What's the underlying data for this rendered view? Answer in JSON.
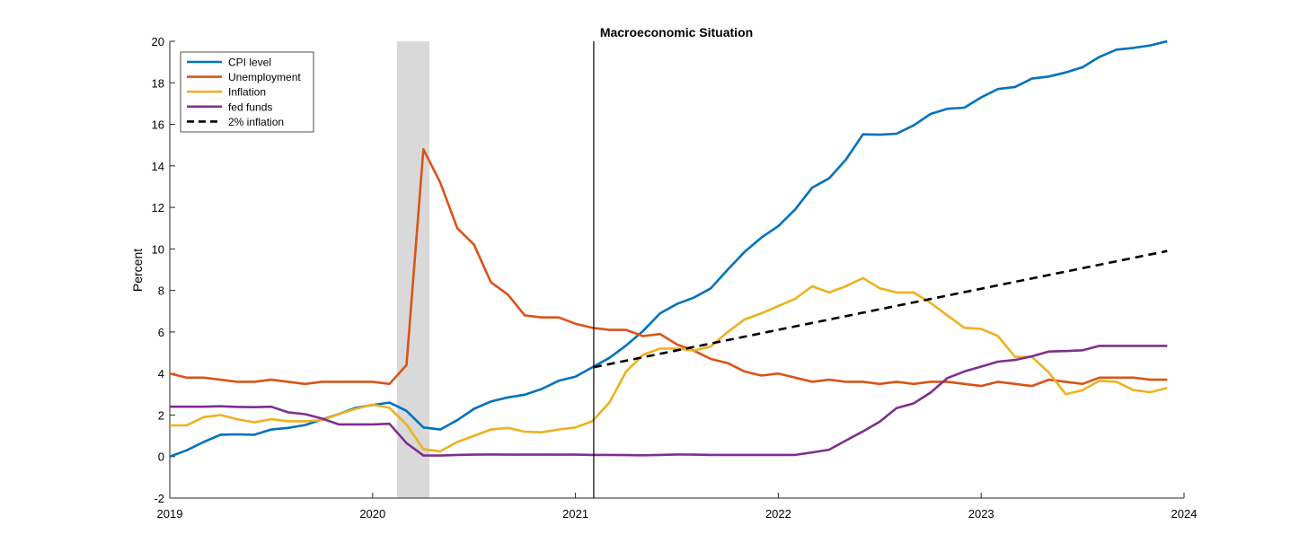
{
  "chart_data": {
    "type": "line",
    "title": "Macroeconomic Situation",
    "xlabel": "",
    "ylabel": "Percent",
    "xlim": [
      2019,
      2024
    ],
    "ylim": [
      -2,
      20
    ],
    "xticks": [
      2019,
      2020,
      2021,
      2022,
      2023,
      2024
    ],
    "xtick_labels": [
      "2019",
      "2020",
      "2021",
      "2022",
      "2023",
      "2024"
    ],
    "yticks": [
      -2,
      0,
      2,
      4,
      6,
      8,
      10,
      12,
      14,
      16,
      18,
      20
    ],
    "ytick_labels": [
      "-2",
      "0",
      "2",
      "4",
      "6",
      "8",
      "10",
      "12",
      "14",
      "16",
      "18",
      "20"
    ],
    "grid": false,
    "legend_position": "top-left",
    "recession_band": {
      "x_start": 2020.12,
      "x_end": 2020.28,
      "color": "#d9d9d9"
    },
    "vertical_marker": {
      "x": 2021.09,
      "color": "#000000"
    },
    "series": [
      {
        "name": "CPI level",
        "color": "#0072BD",
        "style": "solid",
        "x": [
          2019.0,
          2019.083,
          2019.167,
          2019.25,
          2019.333,
          2019.417,
          2019.5,
          2019.583,
          2019.667,
          2019.75,
          2019.833,
          2019.917,
          2020.0,
          2020.083,
          2020.167,
          2020.25,
          2020.333,
          2020.417,
          2020.5,
          2020.583,
          2020.667,
          2020.75,
          2020.833,
          2020.917,
          2021.0,
          2021.083,
          2021.167,
          2021.25,
          2021.333,
          2021.417,
          2021.5,
          2021.583,
          2021.667,
          2021.75,
          2021.833,
          2021.917,
          2022.0,
          2022.083,
          2022.167,
          2022.25,
          2022.333,
          2022.417,
          2022.5,
          2022.583,
          2022.667,
          2022.75,
          2022.833,
          2022.917,
          2023.0,
          2023.083,
          2023.167,
          2023.25,
          2023.333,
          2023.417,
          2023.5,
          2023.583,
          2023.667,
          2023.75,
          2023.833,
          2023.917
        ],
        "values": [
          0.0,
          0.3,
          0.7,
          1.05,
          1.07,
          1.05,
          1.3,
          1.38,
          1.52,
          1.78,
          2.05,
          2.35,
          2.48,
          2.6,
          2.2,
          1.4,
          1.3,
          1.75,
          2.3,
          2.65,
          2.85,
          2.98,
          3.25,
          3.65,
          3.85,
          4.3,
          4.75,
          5.35,
          6.05,
          6.9,
          7.35,
          7.65,
          8.1,
          9.0,
          9.85,
          10.55,
          11.1,
          11.9,
          12.95,
          13.4,
          14.3,
          15.52,
          15.5,
          15.55,
          15.95,
          16.5,
          16.75,
          16.8,
          17.3,
          17.7,
          17.8,
          18.2,
          18.3,
          18.5,
          18.75,
          19.25,
          19.6,
          19.68,
          19.8,
          20.0
        ]
      },
      {
        "name": "Unemployment",
        "color": "#D95319",
        "style": "solid",
        "x": [
          2019.0,
          2019.083,
          2019.167,
          2019.25,
          2019.333,
          2019.417,
          2019.5,
          2019.583,
          2019.667,
          2019.75,
          2019.833,
          2019.917,
          2020.0,
          2020.083,
          2020.167,
          2020.25,
          2020.333,
          2020.417,
          2020.5,
          2020.583,
          2020.667,
          2020.75,
          2020.833,
          2020.917,
          2021.0,
          2021.083,
          2021.167,
          2021.25,
          2021.333,
          2021.417,
          2021.5,
          2021.583,
          2021.667,
          2021.75,
          2021.833,
          2021.917,
          2022.0,
          2022.083,
          2022.167,
          2022.25,
          2022.333,
          2022.417,
          2022.5,
          2022.583,
          2022.667,
          2022.75,
          2022.833,
          2022.917,
          2023.0,
          2023.083,
          2023.167,
          2023.25,
          2023.333,
          2023.417,
          2023.5,
          2023.583,
          2023.667,
          2023.75,
          2023.833,
          2023.917
        ],
        "values": [
          4.0,
          3.8,
          3.8,
          3.7,
          3.6,
          3.6,
          3.7,
          3.6,
          3.5,
          3.6,
          3.6,
          3.6,
          3.6,
          3.5,
          4.4,
          14.8,
          13.2,
          11.0,
          10.2,
          8.4,
          7.8,
          6.8,
          6.7,
          6.7,
          6.4,
          6.2,
          6.1,
          6.1,
          5.8,
          5.9,
          5.4,
          5.1,
          4.7,
          4.5,
          4.1,
          3.9,
          4.0,
          3.8,
          3.6,
          3.7,
          3.6,
          3.6,
          3.5,
          3.6,
          3.5,
          3.6,
          3.6,
          3.5,
          3.4,
          3.6,
          3.5,
          3.4,
          3.7,
          3.6,
          3.5,
          3.8,
          3.8,
          3.8,
          3.7,
          3.7
        ]
      },
      {
        "name": "Inflation",
        "color": "#EDB120",
        "style": "solid",
        "x": [
          2019.0,
          2019.083,
          2019.167,
          2019.25,
          2019.333,
          2019.417,
          2019.5,
          2019.583,
          2019.667,
          2019.75,
          2019.833,
          2019.917,
          2020.0,
          2020.083,
          2020.167,
          2020.25,
          2020.333,
          2020.417,
          2020.5,
          2020.583,
          2020.667,
          2020.75,
          2020.833,
          2020.917,
          2021.0,
          2021.083,
          2021.167,
          2021.25,
          2021.333,
          2021.417,
          2021.5,
          2021.583,
          2021.667,
          2021.75,
          2021.833,
          2021.917,
          2022.0,
          2022.083,
          2022.167,
          2022.25,
          2022.333,
          2022.417,
          2022.5,
          2022.583,
          2022.667,
          2022.75,
          2022.833,
          2022.917,
          2023.0,
          2023.083,
          2023.167,
          2023.25,
          2023.333,
          2023.417,
          2023.5,
          2023.583,
          2023.667,
          2023.75,
          2023.833,
          2023.917
        ],
        "values": [
          1.5,
          1.5,
          1.9,
          2.0,
          1.8,
          1.65,
          1.8,
          1.7,
          1.7,
          1.75,
          2.05,
          2.3,
          2.5,
          2.35,
          1.55,
          0.35,
          0.25,
          0.7,
          1.0,
          1.3,
          1.38,
          1.2,
          1.17,
          1.3,
          1.4,
          1.7,
          2.6,
          4.1,
          4.9,
          5.2,
          5.2,
          5.1,
          5.3,
          6.0,
          6.6,
          6.9,
          7.25,
          7.6,
          8.2,
          7.9,
          8.2,
          8.6,
          8.1,
          7.9,
          7.9,
          7.4,
          6.8,
          6.2,
          6.15,
          5.8,
          4.8,
          4.8,
          4.05,
          3.0,
          3.2,
          3.65,
          3.6,
          3.2,
          3.1,
          3.3
        ]
      },
      {
        "name": "fed funds",
        "color": "#7E2F8E",
        "style": "solid",
        "x": [
          2019.0,
          2019.083,
          2019.167,
          2019.25,
          2019.333,
          2019.417,
          2019.5,
          2019.583,
          2019.667,
          2019.75,
          2019.833,
          2019.917,
          2020.0,
          2020.083,
          2020.167,
          2020.25,
          2020.333,
          2020.417,
          2020.5,
          2020.583,
          2020.667,
          2020.75,
          2020.833,
          2020.917,
          2021.0,
          2021.083,
          2021.167,
          2021.25,
          2021.333,
          2021.417,
          2021.5,
          2021.583,
          2021.667,
          2021.75,
          2021.833,
          2021.917,
          2022.0,
          2022.083,
          2022.167,
          2022.25,
          2022.333,
          2022.417,
          2022.5,
          2022.583,
          2022.667,
          2022.75,
          2022.833,
          2022.917,
          2023.0,
          2023.083,
          2023.167,
          2023.25,
          2023.333,
          2023.417,
          2023.5,
          2023.583,
          2023.667,
          2023.75,
          2023.833,
          2023.917
        ],
        "values": [
          2.4,
          2.4,
          2.4,
          2.42,
          2.39,
          2.38,
          2.4,
          2.13,
          2.04,
          1.83,
          1.55,
          1.55,
          1.55,
          1.58,
          0.65,
          0.05,
          0.05,
          0.08,
          0.09,
          0.1,
          0.09,
          0.09,
          0.09,
          0.09,
          0.09,
          0.08,
          0.08,
          0.07,
          0.06,
          0.08,
          0.1,
          0.09,
          0.08,
          0.08,
          0.08,
          0.08,
          0.08,
          0.08,
          0.2,
          0.33,
          0.77,
          1.21,
          1.68,
          2.33,
          2.56,
          3.08,
          3.78,
          4.1,
          4.33,
          4.57,
          4.65,
          4.83,
          5.06,
          5.08,
          5.12,
          5.33,
          5.33,
          5.33,
          5.33,
          5.33
        ]
      },
      {
        "name": "2% inflation",
        "color": "#000000",
        "style": "dashed",
        "x": [
          2021.09,
          2023.917
        ],
        "values": [
          4.3,
          9.9
        ]
      }
    ]
  }
}
